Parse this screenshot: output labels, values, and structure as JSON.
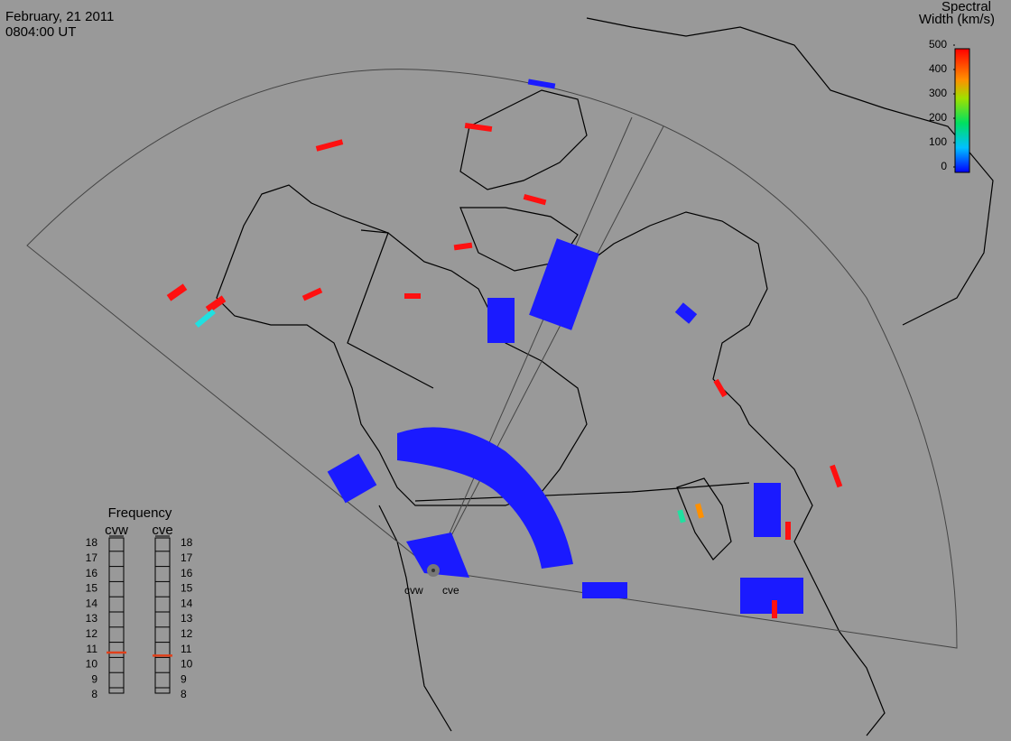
{
  "header": {
    "date": "February, 21 2011",
    "time": "0804:00 UT"
  },
  "colorbar": {
    "title": [
      "Spectral",
      "Width (km/s)"
    ],
    "lim": [
      0,
      500
    ],
    "ticks": [
      0,
      100,
      200,
      300,
      400,
      500
    ]
  },
  "frequency": {
    "title": "Frequency",
    "lim": [
      8,
      18
    ],
    "ticks": [
      8,
      9,
      10,
      11,
      12,
      13,
      14,
      15,
      16,
      17,
      18
    ],
    "radars": [
      {
        "name": "cvw",
        "value": 10.8,
        "color": "#e0401a"
      },
      {
        "name": "cve",
        "value": 10.6,
        "color": "#e0401a"
      }
    ]
  },
  "radar_sites": [
    "cvw",
    "cve"
  ]
}
